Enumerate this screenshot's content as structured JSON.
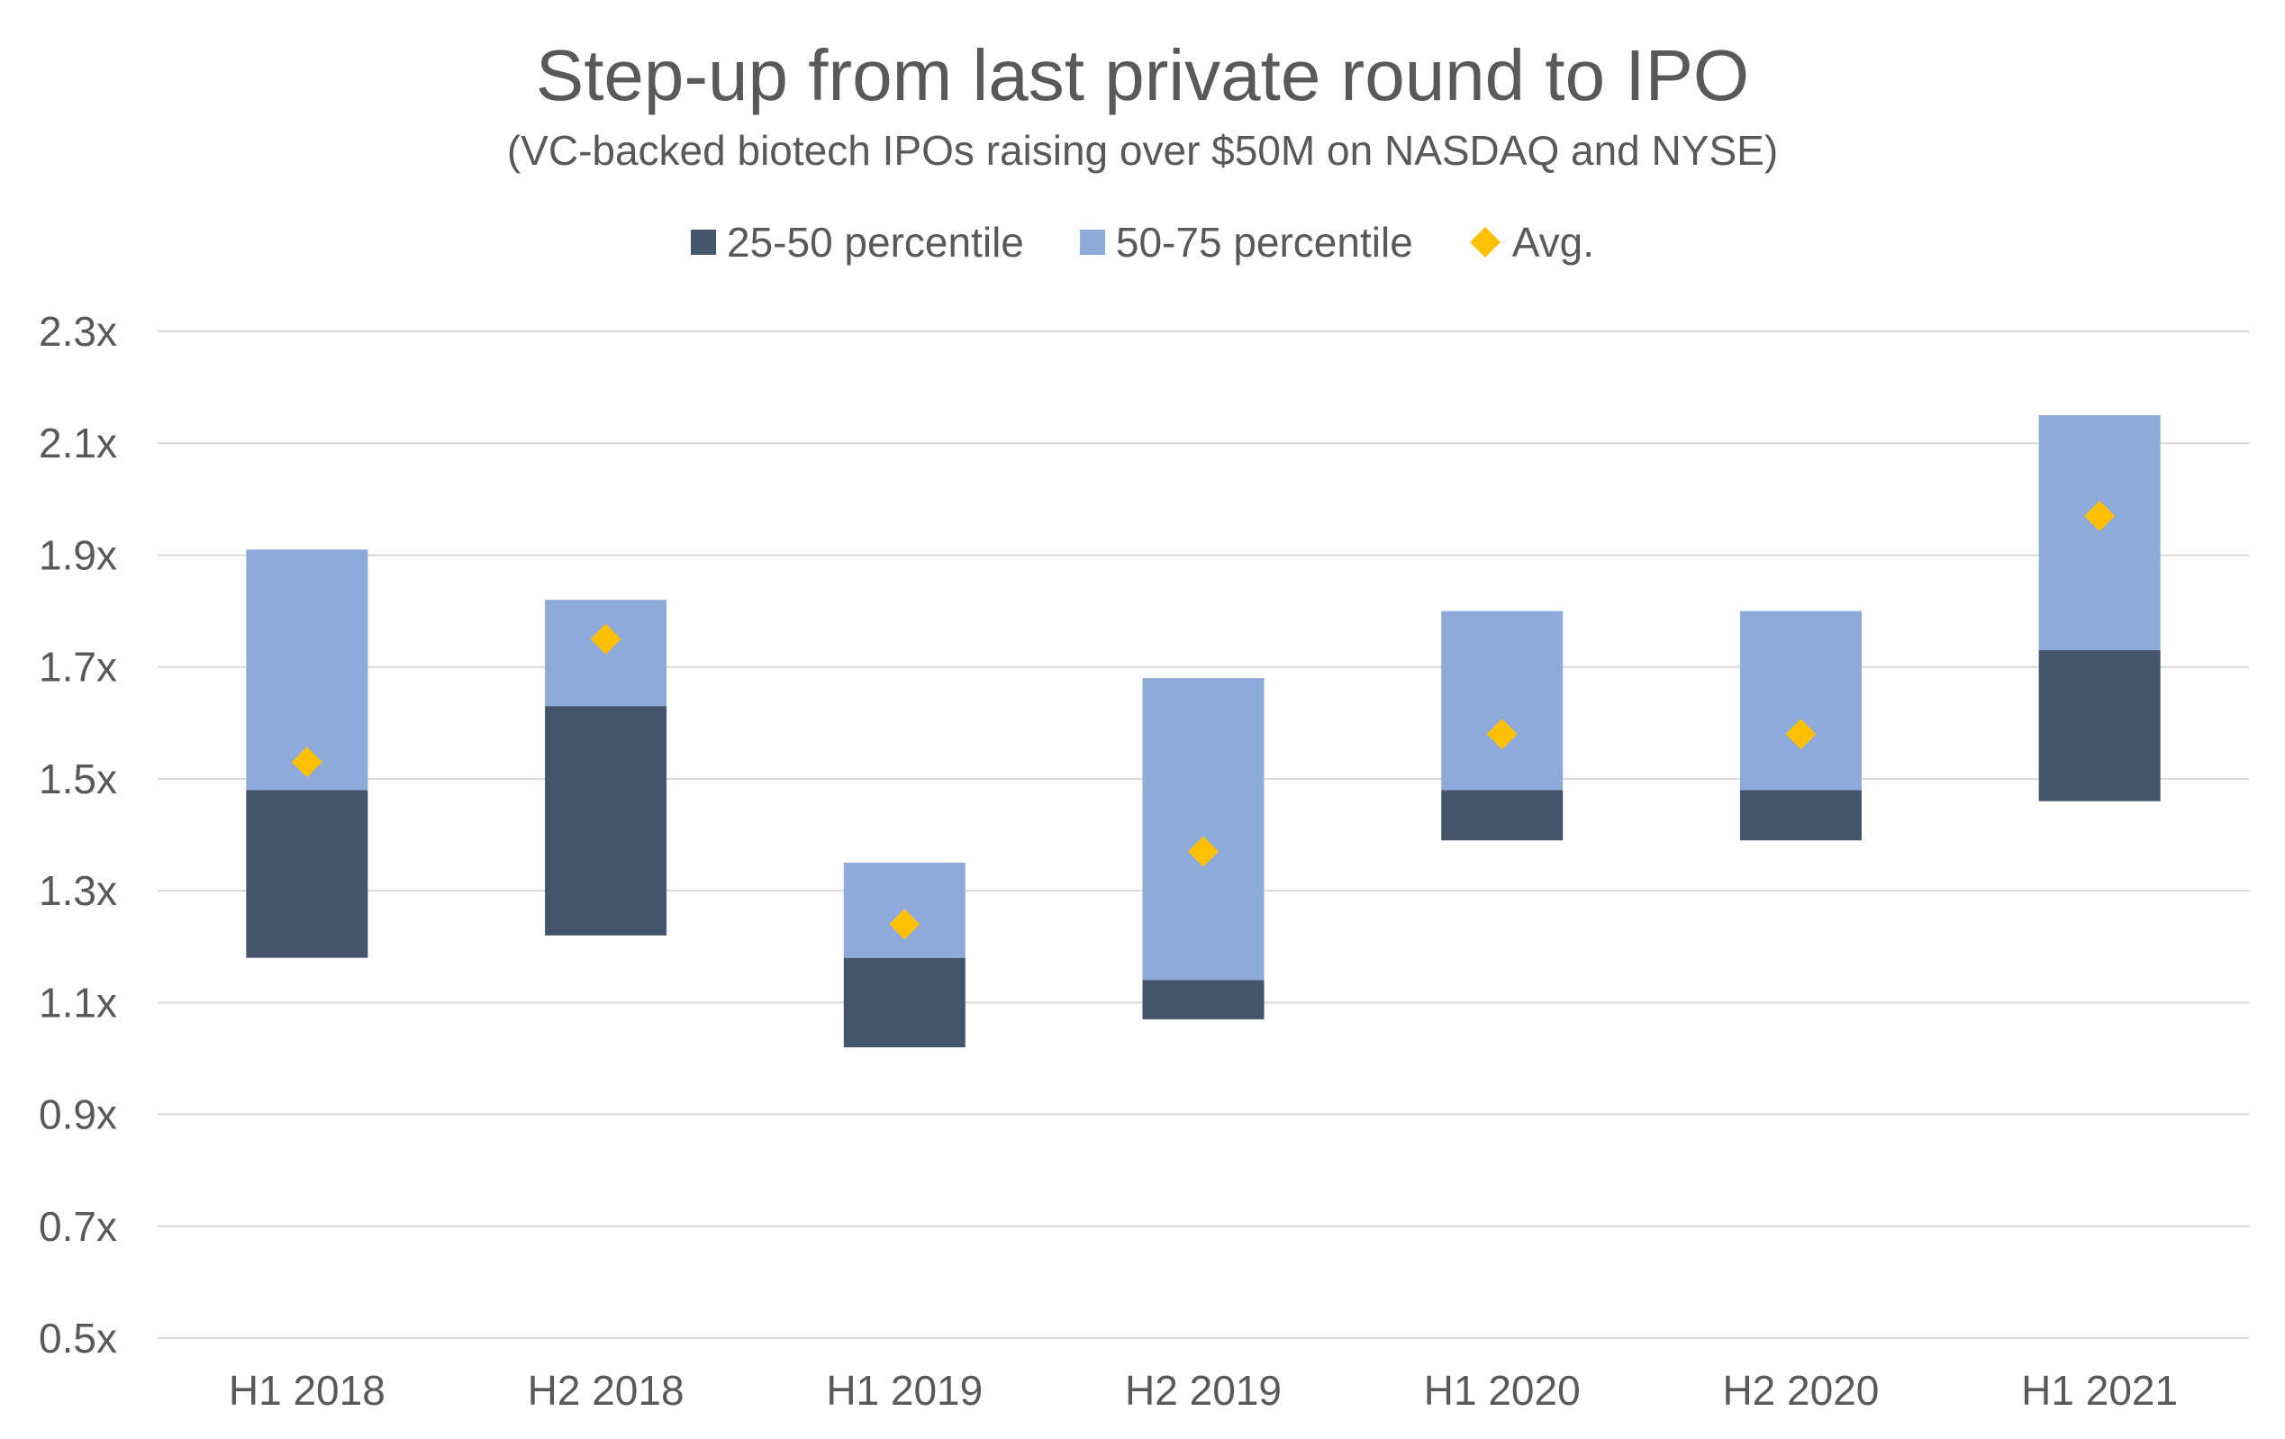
{
  "chart_data": {
    "type": "bar",
    "title": "Step-up from last private round to IPO",
    "subtitle": "(VC-backed biotech IPOs raising over $50M on NASDAQ and NYSE)",
    "categories": [
      "H1 2018",
      "H2 2018",
      "H1 2019",
      "H2 2019",
      "H1 2020",
      "H2 2020",
      "H1 2021"
    ],
    "series": [
      {
        "name": "25-50 percentile",
        "color": "#44546a",
        "low": [
          1.18,
          1.22,
          1.02,
          1.07,
          1.39,
          1.39,
          1.46
        ],
        "high": [
          1.48,
          1.63,
          1.18,
          1.14,
          1.48,
          1.48,
          1.73
        ]
      },
      {
        "name": "50-75 percentile",
        "color": "#8eaadb",
        "low": [
          1.48,
          1.63,
          1.18,
          1.14,
          1.48,
          1.48,
          1.73
        ],
        "high": [
          1.91,
          1.82,
          1.35,
          1.68,
          1.8,
          1.8,
          2.15
        ]
      },
      {
        "name": "Avg.",
        "color": "#ffc000",
        "values": [
          1.53,
          1.75,
          1.24,
          1.37,
          1.58,
          1.58,
          1.97
        ]
      }
    ],
    "yticks": [
      "2.3x",
      "2.1x",
      "1.9x",
      "1.7x",
      "1.5x",
      "1.3x",
      "1.1x",
      "0.9x",
      "0.7x",
      "0.5x"
    ],
    "ylim": [
      0.5,
      2.3
    ],
    "grid": true,
    "legend_position": "top"
  }
}
